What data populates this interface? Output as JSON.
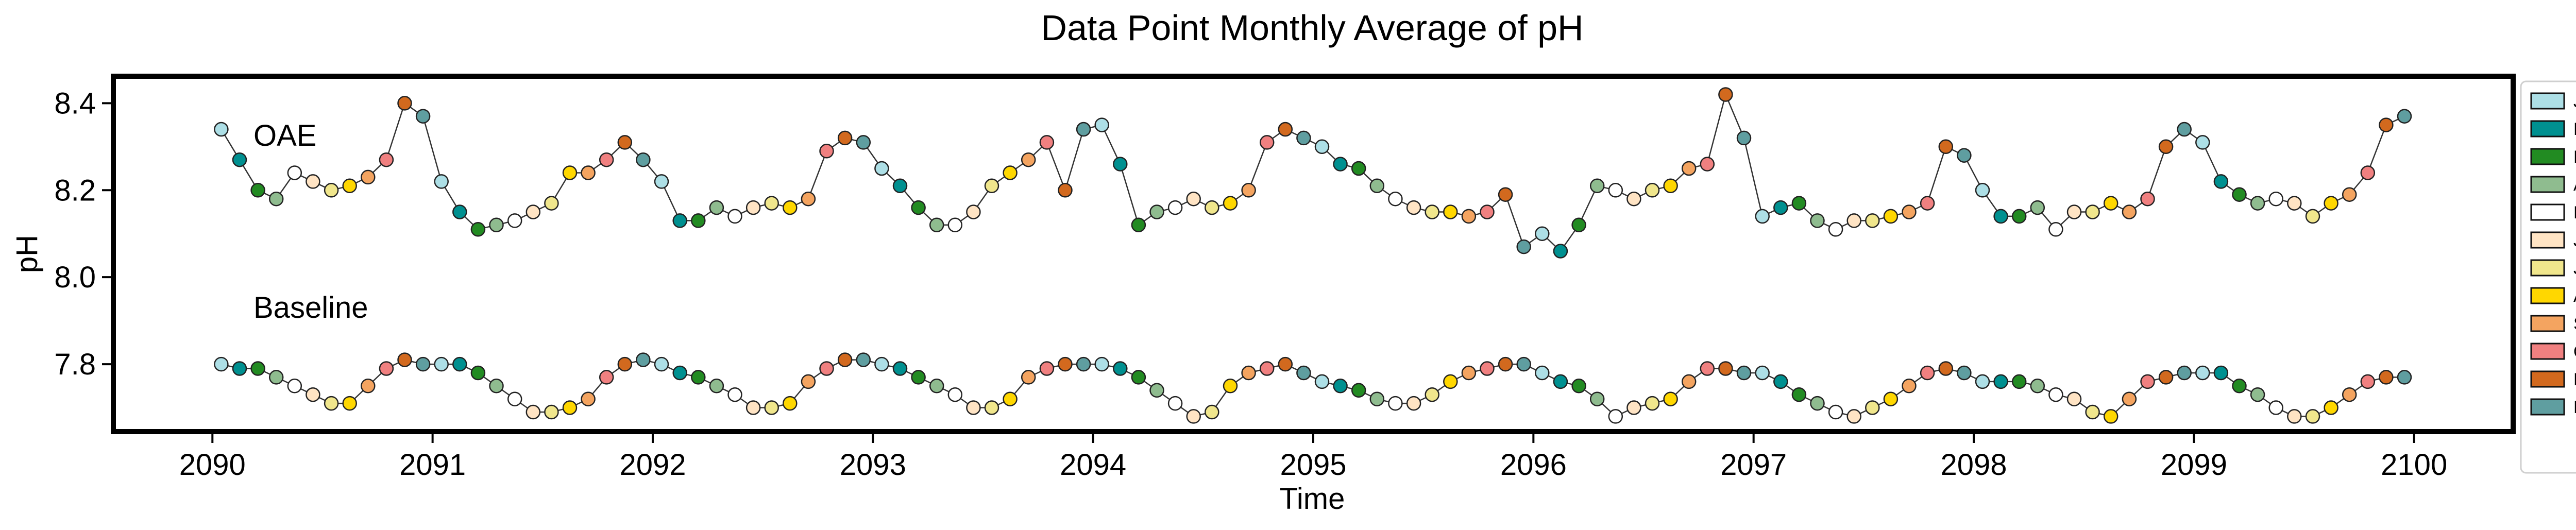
{
  "chart_data": {
    "type": "line",
    "title": "Data Point Monthly Average of pH",
    "xlabel": "Time",
    "ylabel": "pH",
    "xlim": [
      2089.55,
      2100.45
    ],
    "ylim": [
      7.645,
      8.462
    ],
    "xticks": [
      2090,
      2091,
      2092,
      2093,
      2094,
      2095,
      2096,
      2097,
      2098,
      2099,
      2100
    ],
    "yticks": [
      7.8,
      8.0,
      8.2,
      8.4
    ],
    "ytick_labels": [
      "7.8",
      "8.0",
      "8.2",
      "8.4"
    ],
    "grid": false,
    "legend_position": "outside-right",
    "month_colors": [
      {
        "label": "Jan",
        "color": "#ADDFE6"
      },
      {
        "label": "Feb",
        "color": "#009090"
      },
      {
        "label": "Mar",
        "color": "#228B22"
      },
      {
        "label": "Apr",
        "color": "#8FBC8F"
      },
      {
        "label": "May",
        "color": "#FFFFFF"
      },
      {
        "label": "June",
        "color": "#FFE4C4"
      },
      {
        "label": "July",
        "color": "#F0E68C"
      },
      {
        "label": "Aug",
        "color": "#FFD700"
      },
      {
        "label": "Sept",
        "color": "#F4A460"
      },
      {
        "label": "Oct",
        "color": "#F08080"
      },
      {
        "label": "Nov",
        "color": "#D2691E"
      },
      {
        "label": "Dec",
        "color": "#5F9EA0"
      }
    ],
    "annotations": [
      "OAE",
      "Baseline"
    ],
    "x_start": 2090.04,
    "x_step": 0.08333,
    "series": [
      {
        "values": [
          8.34,
          8.27,
          8.2,
          8.18,
          8.24,
          8.22,
          8.2,
          8.21,
          8.23,
          8.27,
          8.4,
          8.37,
          8.22,
          8.15,
          8.11,
          8.12,
          8.13,
          8.15,
          8.17,
          8.24,
          8.24,
          8.27,
          8.31,
          8.27,
          8.22,
          8.13,
          8.13,
          8.16,
          8.14,
          8.16,
          8.17,
          8.16,
          8.18,
          8.29,
          8.32,
          8.31,
          8.25,
          8.21,
          8.16,
          8.12,
          8.12,
          8.15,
          8.21,
          8.24,
          8.27,
          8.31,
          8.2,
          8.34,
          8.35,
          8.26,
          8.12,
          8.15,
          8.16,
          8.18,
          8.16,
          8.17,
          8.2,
          8.31,
          8.34,
          8.32,
          8.3,
          8.26,
          8.25,
          8.21,
          8.18,
          8.16,
          8.15,
          8.15,
          8.14,
          8.15,
          8.19,
          8.07,
          8.1,
          8.06,
          8.12,
          8.21,
          8.2,
          8.18,
          8.2,
          8.21,
          8.25,
          8.26,
          8.42,
          8.32,
          8.14,
          8.16,
          8.17,
          8.13,
          8.11,
          8.13,
          8.13,
          8.14,
          8.15,
          8.17,
          8.3,
          8.28,
          8.2,
          8.14,
          8.14,
          8.16,
          8.11,
          8.15,
          8.15,
          8.17,
          8.15,
          8.18,
          8.3,
          8.34,
          8.31,
          8.22,
          8.19,
          8.17,
          8.18,
          8.17,
          8.14,
          8.17,
          8.19,
          8.24,
          8.35,
          8.37
        ]
      },
      {
        "values": [
          7.8,
          7.79,
          7.79,
          7.77,
          7.75,
          7.73,
          7.71,
          7.71,
          7.75,
          7.79,
          7.81,
          7.8,
          7.8,
          7.8,
          7.78,
          7.75,
          7.72,
          7.69,
          7.69,
          7.7,
          7.72,
          7.77,
          7.8,
          7.81,
          7.8,
          7.78,
          7.77,
          7.75,
          7.73,
          7.7,
          7.7,
          7.71,
          7.76,
          7.79,
          7.81,
          7.81,
          7.8,
          7.79,
          7.77,
          7.75,
          7.73,
          7.7,
          7.7,
          7.72,
          7.77,
          7.79,
          7.8,
          7.8,
          7.8,
          7.79,
          7.77,
          7.74,
          7.71,
          7.68,
          7.69,
          7.75,
          7.78,
          7.79,
          7.8,
          7.78,
          7.76,
          7.75,
          7.74,
          7.72,
          7.71,
          7.71,
          7.73,
          7.76,
          7.78,
          7.79,
          7.8,
          7.8,
          7.78,
          7.76,
          7.75,
          7.72,
          7.68,
          7.7,
          7.71,
          7.72,
          7.76,
          7.79,
          7.79,
          7.78,
          7.78,
          7.76,
          7.73,
          7.71,
          7.69,
          7.68,
          7.7,
          7.72,
          7.75,
          7.78,
          7.79,
          7.78,
          7.76,
          7.76,
          7.76,
          7.75,
          7.73,
          7.72,
          7.69,
          7.68,
          7.72,
          7.76,
          7.77,
          7.78,
          7.78,
          7.78,
          7.75,
          7.73,
          7.7,
          7.68,
          7.68,
          7.7,
          7.73,
          7.76,
          7.77,
          7.77
        ]
      }
    ]
  }
}
